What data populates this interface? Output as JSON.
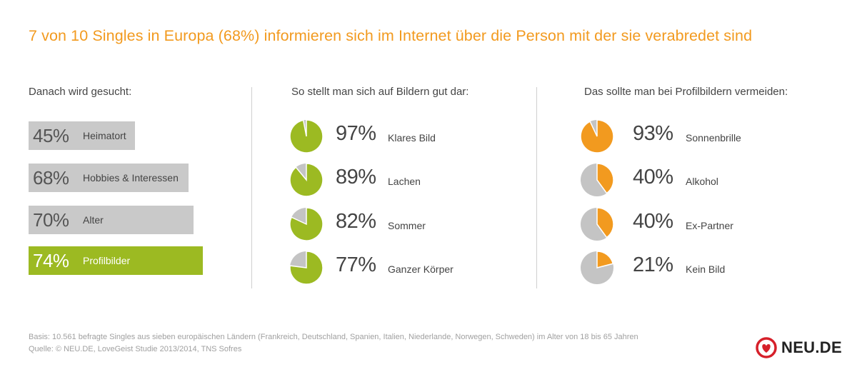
{
  "title": "7 von 10 Singles in Europa (68%) informieren sich im Internet über die Person mit der sie verabredet sind",
  "colors": {
    "accent": "#f29a1f",
    "green": "#9cba22",
    "gray": "#c9c9c9",
    "pie_rest": "#c4c4c4"
  },
  "chart_data": [
    {
      "type": "bar",
      "title": "Danach wird gesucht:",
      "categories": [
        "Heimatort",
        "Hobbies & Interessen",
        "Alter",
        "Profilbilder"
      ],
      "values": [
        45,
        68,
        70,
        74
      ],
      "value_labels": [
        "45%",
        "68%",
        "70%",
        "74%"
      ],
      "highlight": "Profilbilder",
      "orientation": "horizontal"
    },
    {
      "type": "pie",
      "title": "So stellt man sich auf Bildern gut dar:",
      "categories": [
        "Klares Bild",
        "Lachen",
        "Sommer",
        "Ganzer Körper"
      ],
      "values": [
        97,
        89,
        82,
        77
      ],
      "value_labels": [
        "97%",
        "89%",
        "82%",
        "77%"
      ],
      "color": "#9cba22"
    },
    {
      "type": "pie",
      "title": "Das sollte man bei Profilbildern vermeiden:",
      "categories": [
        "Sonnenbrille",
        "Alkohol",
        "Ex-Partner",
        "Kein Bild"
      ],
      "values": [
        93,
        40,
        40,
        21
      ],
      "value_labels": [
        "93%",
        "40%",
        "40%",
        "21%"
      ],
      "color": "#f29a1f"
    }
  ],
  "footnotes": {
    "basis": "Basis: 10.561 befragte Singles aus sieben europäischen Ländern (Frankreich, Deutschland, Spanien, Italien, Niederlande, Norwegen, Schweden) im Alter von 18 bis 65 Jahren",
    "source": "Quelle: © NEU.DE, LoveGeist Studie 2013/2014, TNS Sofres"
  },
  "logo": {
    "text": "NEU.DE",
    "icon": "heart-logo-icon"
  }
}
